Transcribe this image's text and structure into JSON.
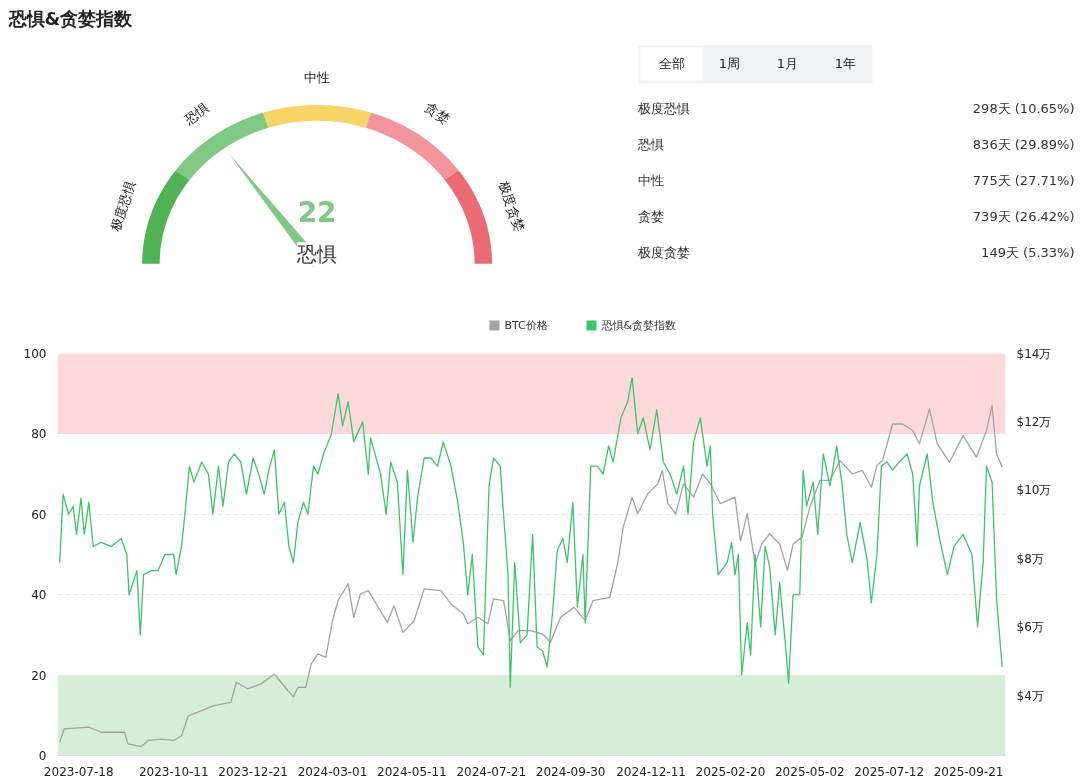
{
  "chart_data": [
    {
      "type": "donut",
      "title": "恐惧&贪婪指数",
      "categories": [
        "极度恐惧",
        "恐惧",
        "中性",
        "贪婪",
        "极度贪婪"
      ],
      "values": [
        20,
        20,
        20,
        20,
        20
      ],
      "colors": [
        "#4fb356",
        "#80c884",
        "#f4d566",
        "#f3959c",
        "#ec6a73"
      ],
      "needle": "恐惧",
      "annotations": [
        "22"
      ]
    },
    {
      "type": "other",
      "annotations": [
        "全部",
        "1周",
        "1月",
        "1年",
        "极度恐惧",
        "298天 (10.65%)",
        "恐惧",
        "836天 (29.89%)",
        "中性",
        "775天 (27.71%)",
        "贪婪",
        "739天 (26.42%)",
        "极度贪婪",
        "149天 (5.33%)"
      ]
    },
    {
      "type": "line",
      "xlim": [
        "2023-06-29",
        "2025-10-24"
      ],
      "xticks": [
        "2023-07-18",
        "2023-10-11",
        "2023-12-21",
        "2024-03-01",
        "2024-05-11",
        "2024-07-21",
        "2024-09-30",
        "2024-12-11",
        "2025-02-20",
        "2025-05-02",
        "2025-07-12",
        "2025-09-21"
      ],
      "ylim": [
        0,
        100
      ],
      "yticks": [
        0,
        20,
        40,
        60,
        80,
        100
      ],
      "y2lim": [
        2.25,
        14
      ],
      "y2ticks": [
        {
          "value": 4,
          "label": "$4万"
        },
        {
          "value": 6,
          "label": "$6万"
        },
        {
          "value": 8,
          "label": "$8万"
        },
        {
          "value": 10,
          "label": "$10万"
        },
        {
          "value": 12,
          "label": "$12万"
        },
        {
          "value": 14,
          "label": "$14万"
        }
      ],
      "grid": "y",
      "legend": "top",
      "bands": [
        {
          "axis": "y",
          "from": 80,
          "to": 100,
          "color": "#fdd9db"
        },
        {
          "axis": "y",
          "from": 0,
          "to": 20,
          "color": "#d6edd8"
        }
      ],
      "series": [
        {
          "name": "BTC价格",
          "color": "#a3a3a3",
          "axis": "y2",
          "x": [
            "2023-07-01",
            "2023-07-05",
            "2023-07-18",
            "2023-07-27",
            "2023-08-07",
            "2023-08-28",
            "2023-08-31",
            "2023-09-12",
            "2023-09-18",
            "2023-09-30",
            "2023-10-11",
            "2023-10-18",
            "2023-10-24",
            "2023-11-05",
            "2023-11-16",
            "2023-12-01",
            "2023-12-06",
            "2023-12-16",
            "2023-12-28",
            "2024-01-09",
            "2024-01-21",
            "2024-01-26",
            "2024-01-30",
            "2024-02-06",
            "2024-02-11",
            "2024-02-17",
            "2024-02-24",
            "2024-03-01",
            "2024-03-06",
            "2024-03-15",
            "2024-03-20",
            "2024-03-26",
            "2024-04-02",
            "2024-04-19",
            "2024-04-25",
            "2024-05-03",
            "2024-05-13",
            "2024-05-22",
            "2024-06-06",
            "2024-06-15",
            "2024-06-26",
            "2024-06-30",
            "2024-07-09",
            "2024-07-18",
            "2024-07-23",
            "2024-08-01",
            "2024-08-07",
            "2024-08-14",
            "2024-08-25",
            "2024-09-05",
            "2024-09-12",
            "2024-09-21",
            "2024-10-03",
            "2024-10-13",
            "2024-10-20",
            "2024-11-04",
            "2024-11-11",
            "2024-11-16",
            "2024-11-24",
            "2024-11-29",
            "2024-12-08",
            "2024-12-17",
            "2024-12-21",
            "2024-12-26",
            "2025-01-02",
            "2025-01-09",
            "2025-01-18",
            "2025-01-26",
            "2025-02-02",
            "2025-02-11",
            "2025-02-24",
            "2025-03-01",
            "2025-03-07",
            "2025-03-14",
            "2025-03-20",
            "2025-03-27",
            "2025-04-05",
            "2025-04-12",
            "2025-04-17",
            "2025-04-25",
            "2025-05-02",
            "2025-05-11",
            "2025-05-20",
            "2025-05-29",
            "2025-06-09",
            "2025-06-18",
            "2025-06-26",
            "2025-07-01",
            "2025-07-06",
            "2025-07-15",
            "2025-07-24",
            "2025-08-02",
            "2025-08-08",
            "2025-08-17",
            "2025-08-24",
            "2025-09-04",
            "2025-09-16",
            "2025-09-28",
            "2025-10-07",
            "2025-10-12",
            "2025-10-16",
            "2025-10-21"
          ],
          "values": [
            2.64,
            3.03,
            3.06,
            3.08,
            2.93,
            2.93,
            2.59,
            2.51,
            2.69,
            2.73,
            2.69,
            2.83,
            3.41,
            3.56,
            3.71,
            3.8,
            4.39,
            4.2,
            4.34,
            4.63,
            4.15,
            3.97,
            4.24,
            4.24,
            4.93,
            5.22,
            5.12,
            6.19,
            6.78,
            7.27,
            6.29,
            6.97,
            7.07,
            6.14,
            6.63,
            5.85,
            6.19,
            7.12,
            7.07,
            6.68,
            6.39,
            6.1,
            6.29,
            6.1,
            6.83,
            6.78,
            5.61,
            5.9,
            5.9,
            5.8,
            5.56,
            6.29,
            6.58,
            6.19,
            6.78,
            6.87,
            7.85,
            8.92,
            9.8,
            9.31,
            9.9,
            10.19,
            10.58,
            9.61,
            9.31,
            10.19,
            9.8,
            10.48,
            10.19,
            9.61,
            9.8,
            8.53,
            9.31,
            7.85,
            8.43,
            8.73,
            8.43,
            7.66,
            8.43,
            8.63,
            9.51,
            10.29,
            10.29,
            10.87,
            10.48,
            10.58,
            10.09,
            10.73,
            10.87,
            11.94,
            11.94,
            11.75,
            11.36,
            12.38,
            11.36,
            10.82,
            11.6,
            10.97,
            11.75,
            12.48,
            11.07,
            10.68
          ]
        },
        {
          "name": "恐惧&贪婪指数",
          "color": "#3cc46b",
          "x": [
            "2023-07-01",
            "2023-07-04",
            "2023-07-09",
            "2023-07-13",
            "2023-07-16",
            "2023-07-20",
            "2023-07-23",
            "2023-07-27",
            "2023-07-31",
            "2023-08-07",
            "2023-08-16",
            "2023-08-25",
            "2023-08-30",
            "2023-09-01",
            "2023-09-08",
            "2023-09-11",
            "2023-09-14",
            "2023-09-21",
            "2023-09-27",
            "2023-10-03",
            "2023-10-11",
            "2023-10-13",
            "2023-10-18",
            "2023-10-22",
            "2023-10-25",
            "2023-10-29",
            "2023-11-05",
            "2023-11-11",
            "2023-11-15",
            "2023-11-20",
            "2023-11-24",
            "2023-11-29",
            "2023-12-04",
            "2023-12-10",
            "2023-12-15",
            "2023-12-21",
            "2023-12-26",
            "2023-12-31",
            "2024-01-04",
            "2024-01-09",
            "2024-01-13",
            "2024-01-18",
            "2024-01-22",
            "2024-01-26",
            "2024-01-30",
            "2024-02-04",
            "2024-02-08",
            "2024-02-13",
            "2024-02-17",
            "2024-02-22",
            "2024-02-29",
            "2024-03-06",
            "2024-03-10",
            "2024-03-15",
            "2024-03-20",
            "2024-03-28",
            "2024-04-02",
            "2024-04-04",
            "2024-04-13",
            "2024-04-18",
            "2024-04-22",
            "2024-04-28",
            "2024-05-03",
            "2024-05-07",
            "2024-05-12",
            "2024-05-16",
            "2024-05-22",
            "2024-05-28",
            "2024-06-03",
            "2024-06-08",
            "2024-06-15",
            "2024-06-21",
            "2024-06-26",
            "2024-06-30",
            "2024-07-04",
            "2024-07-09",
            "2024-07-14",
            "2024-07-19",
            "2024-07-23",
            "2024-07-29",
            "2024-08-01",
            "2024-08-05",
            "2024-08-07",
            "2024-08-11",
            "2024-08-16",
            "2024-08-22",
            "2024-08-27",
            "2024-08-31",
            "2024-09-05",
            "2024-09-09",
            "2024-09-14",
            "2024-09-18",
            "2024-09-23",
            "2024-09-27",
            "2024-10-02",
            "2024-10-06",
            "2024-10-11",
            "2024-10-13",
            "2024-10-18",
            "2024-10-24",
            "2024-10-29",
            "2024-11-03",
            "2024-11-07",
            "2024-11-14",
            "2024-11-20",
            "2024-11-24",
            "2024-11-29",
            "2024-12-04",
            "2024-12-10",
            "2024-12-16",
            "2024-12-22",
            "2024-12-28",
            "2025-01-03",
            "2025-01-09",
            "2025-01-13",
            "2025-01-18",
            "2025-01-24",
            "2025-01-30",
            "2025-02-02",
            "2025-02-04",
            "2025-02-09",
            "2025-02-17",
            "2025-02-21",
            "2025-02-24",
            "2025-02-27",
            "2025-03-02",
            "2025-03-07",
            "2025-03-10",
            "2025-03-14",
            "2025-03-19",
            "2025-03-23",
            "2025-03-27",
            "2025-04-01",
            "2025-04-05",
            "2025-04-10",
            "2025-04-13",
            "2025-04-17",
            "2025-04-23",
            "2025-04-26",
            "2025-04-29",
            "2025-05-05",
            "2025-05-09",
            "2025-05-14",
            "2025-05-20",
            "2025-05-26",
            "2025-05-31",
            "2025-06-04",
            "2025-06-09",
            "2025-06-16",
            "2025-06-22",
            "2025-06-26",
            "2025-07-01",
            "2025-07-05",
            "2025-07-10",
            "2025-07-15",
            "2025-07-21",
            "2025-07-28",
            "2025-08-02",
            "2025-08-06",
            "2025-08-08",
            "2025-08-15",
            "2025-08-20",
            "2025-08-26",
            "2025-09-02",
            "2025-09-08",
            "2025-09-16",
            "2025-09-24",
            "2025-09-29",
            "2025-10-04",
            "2025-10-07",
            "2025-10-12",
            "2025-10-16",
            "2025-10-21"
          ],
          "values": [
            48,
            65,
            60,
            62,
            55,
            64,
            55,
            63,
            52,
            53,
            52,
            54,
            50,
            40,
            46,
            30,
            45,
            46,
            46,
            50,
            50,
            45,
            52,
            63,
            72,
            68,
            73,
            70,
            60,
            72,
            62,
            73,
            75,
            73,
            65,
            74,
            70,
            65,
            71,
            76,
            60,
            63,
            52,
            48,
            58,
            63,
            60,
            72,
            70,
            75,
            80,
            90,
            82,
            88,
            78,
            83,
            70,
            79,
            70,
            60,
            73,
            68,
            45,
            71,
            53,
            64,
            74,
            74,
            72,
            78,
            72,
            63,
            53,
            40,
            50,
            27,
            25,
            67,
            74,
            72,
            60,
            45,
            17,
            48,
            28,
            30,
            55,
            27,
            26,
            22,
            36,
            51,
            54,
            48,
            63,
            37,
            50,
            33,
            72,
            72,
            70,
            77,
            73,
            84,
            88,
            94,
            80,
            84,
            76,
            86,
            73,
            70,
            65,
            72,
            60,
            78,
            84,
            72,
            77,
            60,
            45,
            48,
            53,
            45,
            50,
            20,
            33,
            25,
            50,
            32,
            52,
            47,
            30,
            43,
            28,
            18,
            40,
            40,
            71,
            62,
            68,
            55,
            75,
            67,
            77,
            67,
            55,
            48,
            58,
            49,
            38,
            50,
            72,
            73,
            71,
            73,
            75,
            70,
            52,
            67,
            75,
            63,
            54,
            45,
            52,
            55,
            50,
            32,
            48,
            72,
            68,
            39,
            22
          ]
        }
      ]
    }
  ]
}
